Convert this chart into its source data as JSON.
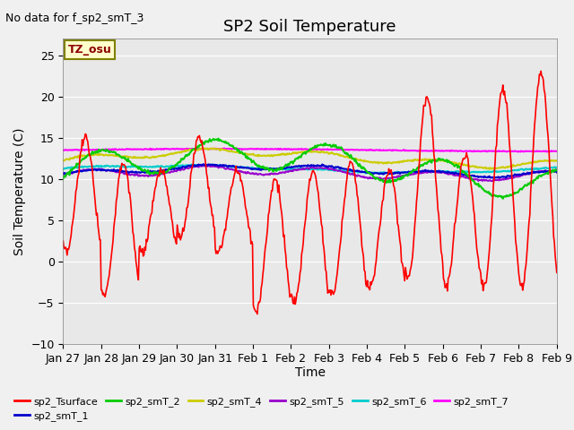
{
  "title": "SP2 Soil Temperature",
  "xlabel": "Time",
  "ylabel": "Soil Temperature (C)",
  "annotation_text": "No data for f_sp2_smT_3",
  "tz_label": "TZ_osu",
  "ylim": [
    -10,
    27
  ],
  "yticks": [
    -10,
    -5,
    0,
    5,
    10,
    15,
    20,
    25
  ],
  "n_days": 13,
  "xtick_labels": [
    "Jan 27",
    "Jan 28",
    "Jan 29",
    "Jan 30",
    "Jan 31",
    "Feb 1",
    "Feb 2",
    "Feb 3",
    "Feb 4",
    "Feb 5",
    "Feb 6",
    "Feb 7",
    "Feb 8",
    "Feb 9"
  ],
  "series_colors": {
    "sp2_Tsurface": "#ff0000",
    "sp2_smT_1": "#0000cc",
    "sp2_smT_2": "#00cc00",
    "sp2_smT_4": "#cccc00",
    "sp2_smT_5": "#9900cc",
    "sp2_smT_6": "#00cccc",
    "sp2_smT_7": "#ff00ff"
  },
  "bg_color": "#e8e8e8",
  "fig_bg_color": "#f0f0f0",
  "grid_color": "#ffffff",
  "title_fontsize": 13,
  "label_fontsize": 10,
  "tick_fontsize": 9,
  "legend_fontsize": 8
}
